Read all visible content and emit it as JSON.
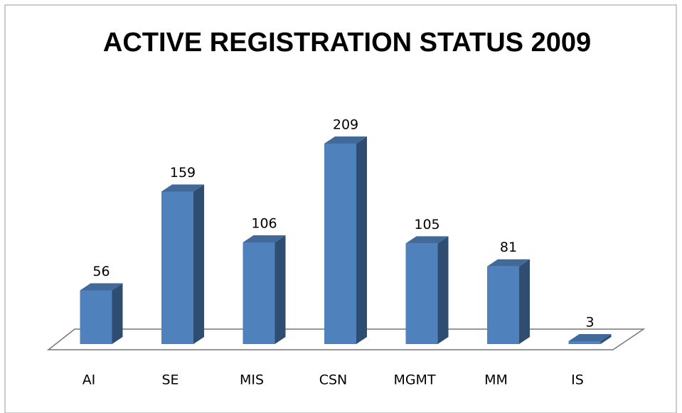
{
  "chart_data": {
    "type": "bar3d",
    "title": "ACTIVE REGISTRATION STATUS 2009",
    "categories": [
      "AI",
      "SE",
      "MIS",
      "CSN",
      "MGMT",
      "MM",
      "IS"
    ],
    "values": [
      56,
      159,
      106,
      209,
      105,
      81,
      3
    ],
    "color": "#4f81bd"
  }
}
